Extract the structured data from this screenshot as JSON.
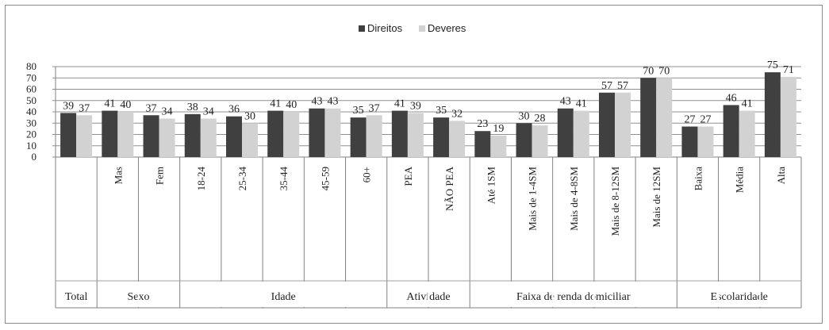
{
  "chart_data": {
    "type": "bar",
    "legend_position": "top-center",
    "grid": true,
    "ylim": [
      0,
      80
    ],
    "yticks": [
      "0",
      "10",
      "20",
      "30",
      "40",
      "50",
      "60",
      "70",
      "80"
    ],
    "colors": {
      "Direitos": "#404040",
      "Deveres": "#d2d2d2"
    },
    "series": [
      {
        "name": "Direitos",
        "values": [
          39,
          41,
          37,
          38,
          36,
          41,
          43,
          35,
          41,
          35,
          23,
          30,
          43,
          57,
          70,
          27,
          46,
          75
        ]
      },
      {
        "name": "Deveres",
        "values": [
          37,
          40,
          34,
          34,
          30,
          40,
          43,
          37,
          39,
          32,
          19,
          28,
          41,
          57,
          70,
          27,
          41,
          71
        ]
      }
    ],
    "categories": [
      "",
      "Mas",
      "Fem",
      "18-24",
      "25-34",
      "35-44",
      "45-59",
      "60+",
      "PEA",
      "NÃO PEA",
      "Até 1SM",
      "Mais de 1-4SM",
      "Mais de 4-8SM",
      "Mais de 8-12SM",
      "Mais de 12SM",
      "Baixa",
      "Média",
      "Alta"
    ],
    "groups": [
      {
        "label": "Total",
        "span": 1
      },
      {
        "label": "Sexo",
        "span": 2
      },
      {
        "label": "Idade",
        "span": 5
      },
      {
        "label": "Atividade",
        "span": 2
      },
      {
        "label": "Faixa de renda domiciliar",
        "span": 5
      },
      {
        "label": "Escolaridade",
        "span": 3
      }
    ]
  }
}
